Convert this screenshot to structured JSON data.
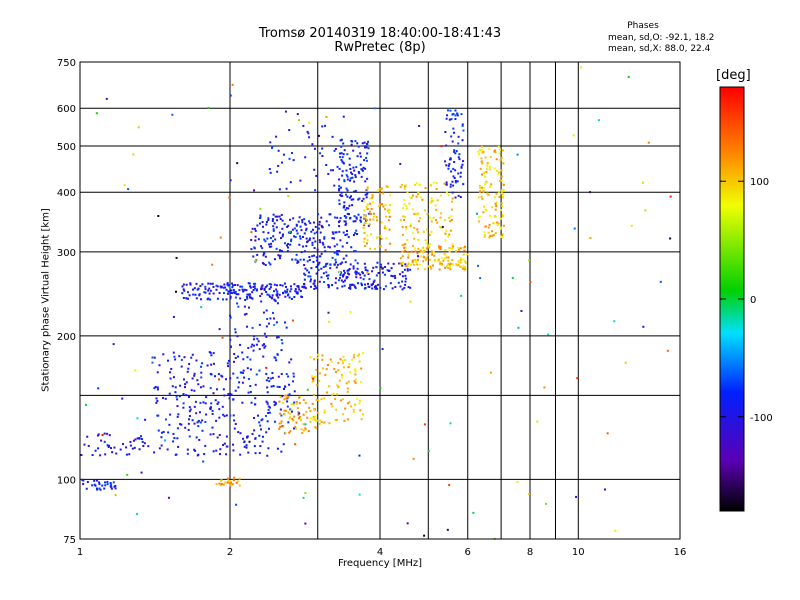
{
  "chart_data": {
    "type": "scatter",
    "title": "Tromsø 20140319 18:40:00-18:41:43",
    "subtitle": "RwPretec (8p)",
    "xlabel": "Frequency [MHz]",
    "ylabel": "Stationary phase Virtual Height [km]",
    "x_scale": "log",
    "y_scale": "log",
    "xlim": [
      1,
      16
    ],
    "ylim": [
      75,
      750
    ],
    "x_ticks": [
      1,
      2,
      4,
      6,
      8,
      10,
      16
    ],
    "x_ticks_unlabeled": [
      3,
      5,
      7,
      9
    ],
    "y_ticks": [
      75,
      100,
      200,
      300,
      400,
      500,
      600,
      750
    ],
    "y_ticks_unlabeled": [
      150
    ],
    "grid": true,
    "stats": {
      "title": "Phases",
      "row1": "mean, sd,O: -92.1, 18.2",
      "row2": "mean, sd,X:  88.0, 22.4"
    },
    "colorbar": {
      "label": "[deg]",
      "range": [
        -180,
        180
      ],
      "ticks": [
        -100,
        0,
        100
      ],
      "colormap": "rainbow"
    },
    "traces": [
      {
        "x_range": [
          1.0,
          1.2
        ],
        "y_range": [
          95,
          100
        ],
        "phase": -92,
        "count": 30
      },
      {
        "x_range": [
          1.85,
          2.1
        ],
        "y_range": [
          97,
          101
        ],
        "phase": 110,
        "count": 25
      },
      {
        "x_range": [
          1.0,
          2.6
        ],
        "y_range": [
          112,
          125
        ],
        "phase": -95,
        "count": 110
      },
      {
        "x_range": [
          1.4,
          2.7
        ],
        "y_range": [
          125,
          185
        ],
        "phase": -92,
        "count": 260
      },
      {
        "x_range": [
          2.0,
          2.6
        ],
        "y_range": [
          185,
          255
        ],
        "phase": -90,
        "count": 70
      },
      {
        "x_range": [
          2.5,
          3.0
        ],
        "y_range": [
          125,
          150
        ],
        "phase": 110,
        "count": 70
      },
      {
        "x_range": [
          2.9,
          3.7
        ],
        "y_range": [
          130,
          185
        ],
        "phase": 100,
        "count": 110
      },
      {
        "x_range": [
          1.6,
          2.8
        ],
        "y_range": [
          238,
          258
        ],
        "phase": -95,
        "count": 170
      },
      {
        "x_range": [
          2.8,
          4.6
        ],
        "y_range": [
          250,
          285
        ],
        "phase": -92,
        "count": 190
      },
      {
        "x_range": [
          4.4,
          6.0
        ],
        "y_range": [
          275,
          310
        ],
        "phase": 105,
        "count": 130
      },
      {
        "x_range": [
          2.2,
          3.6
        ],
        "y_range": [
          280,
          360
        ],
        "phase": -92,
        "count": 240
      },
      {
        "x_range": [
          3.3,
          3.8
        ],
        "y_range": [
          340,
          520
        ],
        "phase": -90,
        "count": 130
      },
      {
        "x_range": [
          2.4,
          3.4
        ],
        "y_range": [
          400,
          600
        ],
        "phase": -95,
        "count": 45
      },
      {
        "x_range": [
          3.7,
          4.2
        ],
        "y_range": [
          300,
          420
        ],
        "phase": 105,
        "count": 80
      },
      {
        "x_range": [
          4.4,
          5.6
        ],
        "y_range": [
          300,
          420
        ],
        "phase": 100,
        "count": 110
      },
      {
        "x_range": [
          5.4,
          5.9
        ],
        "y_range": [
          380,
          600
        ],
        "phase": -90,
        "count": 70
      },
      {
        "x_range": [
          6.3,
          7.1
        ],
        "y_range": [
          320,
          500
        ],
        "phase": 100,
        "count": 130
      },
      {
        "x_range": [
          1.0,
          16.0
        ],
        "y_range": [
          75,
          750
        ],
        "phase": 0,
        "count": 140,
        "note": "scattered noise"
      }
    ]
  }
}
